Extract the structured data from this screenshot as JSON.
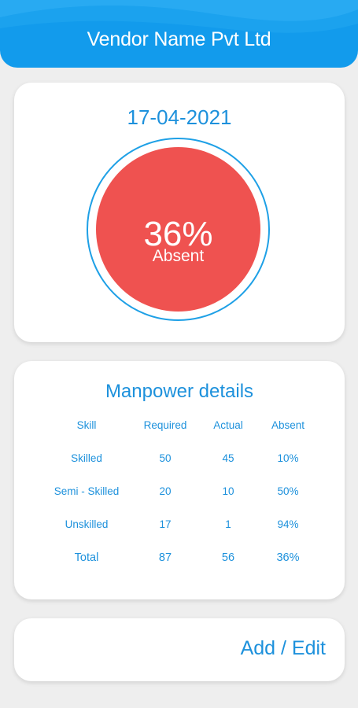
{
  "header": {
    "title": "Vendor Name Pvt Ltd",
    "color": "#129bec"
  },
  "summary": {
    "date": "17-04-2021",
    "percent": "36%",
    "label": "Absent",
    "absent_fraction": 0.36,
    "circle_color": "#ef5250"
  },
  "details": {
    "title": "Manpower details",
    "columns": [
      "Skill",
      "Required",
      "Actual",
      "Absent"
    ],
    "rows": [
      [
        "Skilled",
        "50",
        "45",
        "10%"
      ],
      [
        "Semi - Skilled",
        "20",
        "10",
        "50%"
      ],
      [
        "Unskilled",
        "17",
        "1",
        "94%"
      ]
    ],
    "total": [
      "Total",
      "87",
      "56",
      "36%"
    ]
  },
  "action": {
    "label": "Add / Edit"
  },
  "colors": {
    "accent": "#1d91dc",
    "background": "#eeeeee"
  }
}
